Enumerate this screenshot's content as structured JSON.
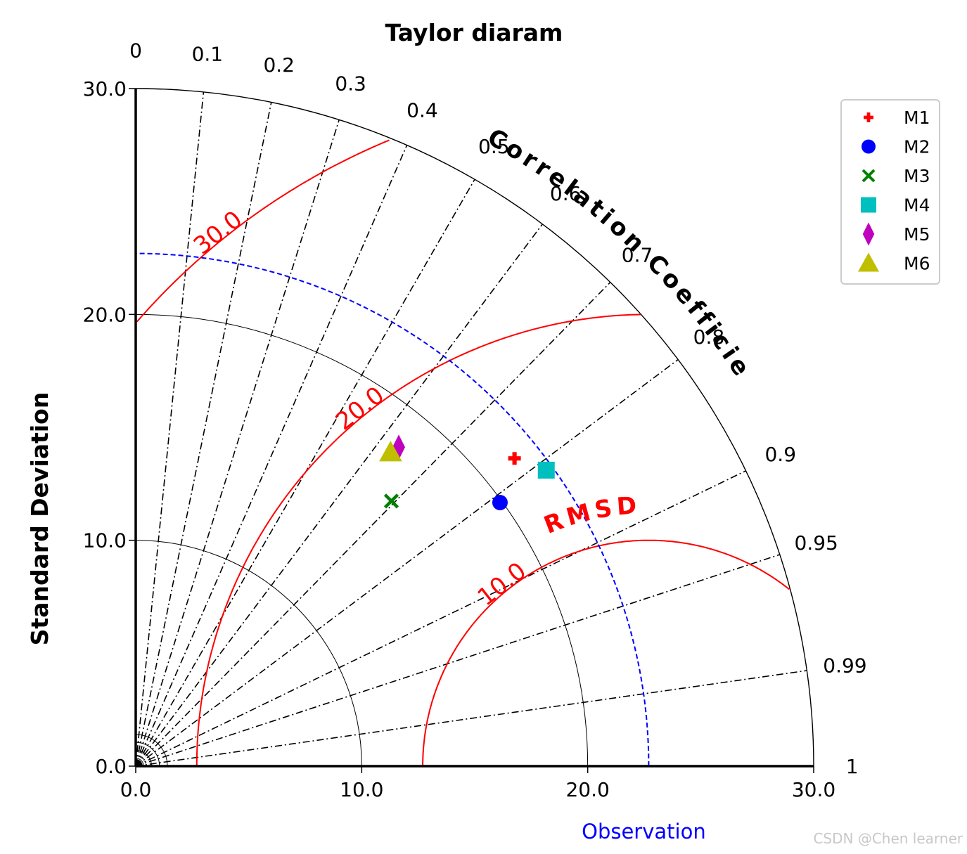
{
  "chart_data": {
    "type": "scatter",
    "title": "Taylor diaram",
    "ylabel": "Standard Deviation",
    "xlabel": "Observation",
    "correlation_label": "Correlation Coefficient",
    "rmsd_label": "RMSD",
    "axis_range": [
      0,
      30
    ],
    "std_ticks": [
      0,
      10,
      20,
      30
    ],
    "std_tick_labels": [
      "0.0",
      "10.0",
      "20.0",
      "30.0"
    ],
    "correlation_ticks": [
      0,
      0.1,
      0.2,
      0.3,
      0.4,
      0.5,
      0.6,
      0.7,
      0.8,
      0.9,
      0.95,
      0.99,
      1
    ],
    "correlation_tick_labels": [
      "0",
      "0.1",
      "0.2",
      "0.3",
      "0.4",
      "0.5",
      "0.6",
      "0.7",
      "0.8",
      "0.9",
      "0.95",
      "0.99",
      "1"
    ],
    "observation_std": 22.7,
    "rmsd_contours": [
      10,
      20,
      30
    ],
    "rmsd_contour_labels": [
      "10.0",
      "20.0",
      "30.0"
    ],
    "legend_position": "upper-right outside",
    "series": [
      {
        "name": "M1",
        "std": 21.6,
        "correlation": 0.776,
        "marker": "plus",
        "color": "#ff0000"
      },
      {
        "name": "M2",
        "std": 19.9,
        "correlation": 0.81,
        "marker": "circle",
        "color": "#0000ff"
      },
      {
        "name": "M3",
        "std": 16.3,
        "correlation": 0.694,
        "marker": "x",
        "color": "#008000"
      },
      {
        "name": "M4",
        "std": 22.4,
        "correlation": 0.811,
        "marker": "square",
        "color": "#00bfbf"
      },
      {
        "name": "M5",
        "std": 18.3,
        "correlation": 0.636,
        "marker": "diamond",
        "color": "#bf00bf"
      },
      {
        "name": "M6",
        "std": 17.9,
        "correlation": 0.63,
        "marker": "triangle",
        "color": "#bfbf00"
      }
    ]
  },
  "watermark": "CSDN @Chen learner"
}
